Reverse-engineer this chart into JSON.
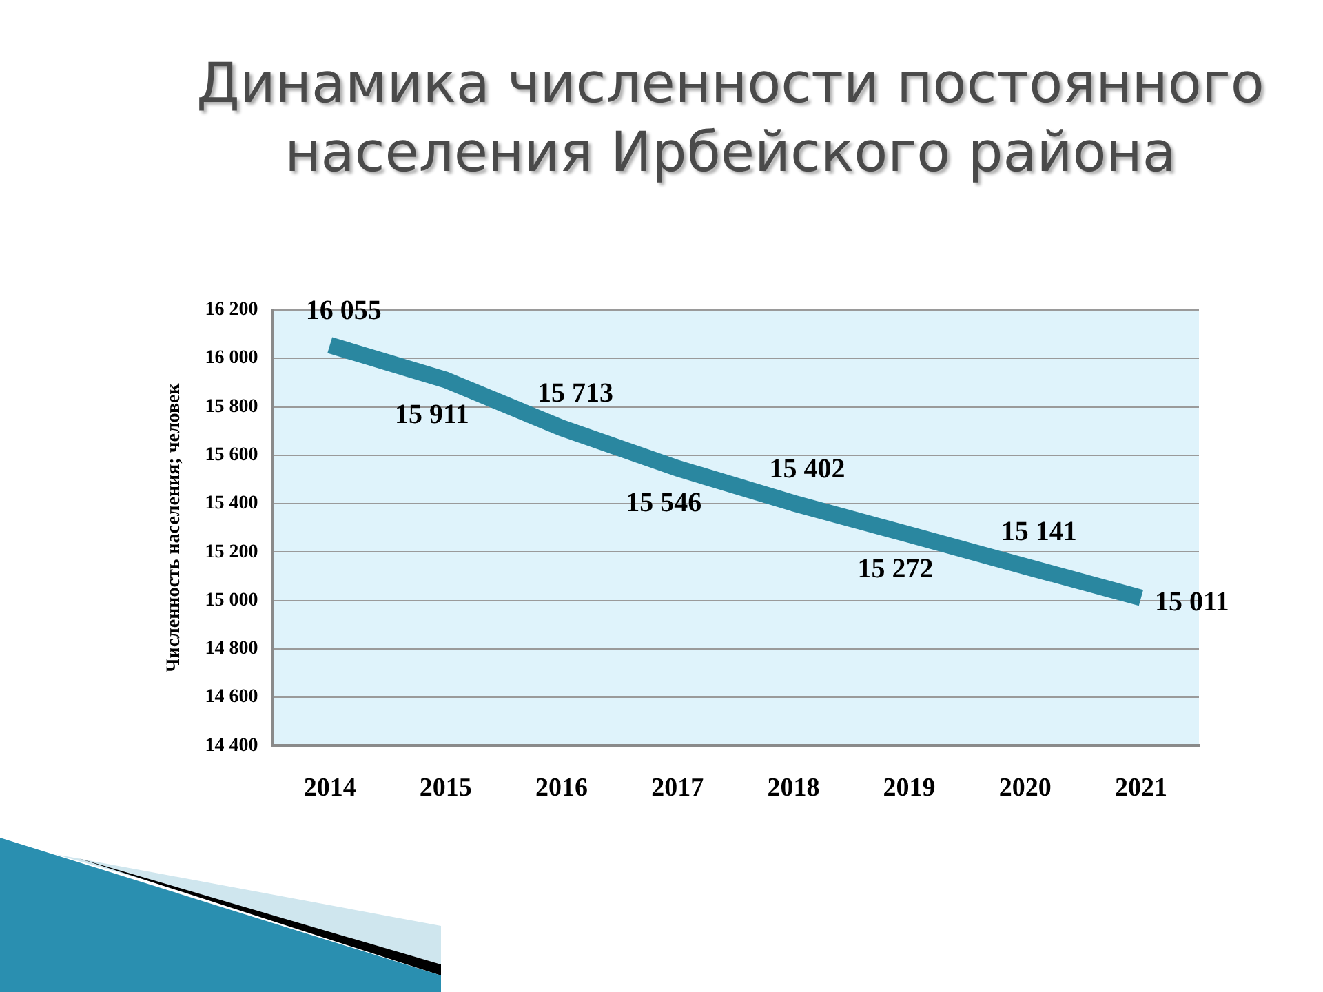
{
  "chart_data": {
    "type": "line",
    "title": "Динамика численности постоянного населения Ирбейского района",
    "ylabel": "Численность населения; человек",
    "categories": [
      "2014",
      "2015",
      "2016",
      "2017",
      "2018",
      "2019",
      "2020",
      "2021"
    ],
    "values": [
      16055,
      15911,
      15713,
      15546,
      15402,
      15272,
      15141,
      15011
    ],
    "value_labels": [
      "16 055",
      "15 911",
      "15 713",
      "15 546",
      "15 402",
      "15 272",
      "15 141",
      "15 011"
    ],
    "color": "#2a87a0",
    "ylim": [
      14400,
      16200
    ],
    "yticks": [
      {
        "value": 14400,
        "label": "14 400"
      },
      {
        "value": 14600,
        "label": "14 600"
      },
      {
        "value": 14800,
        "label": "14 800"
      },
      {
        "value": 15000,
        "label": "15 000"
      },
      {
        "value": 15200,
        "label": "15 200"
      },
      {
        "value": 15400,
        "label": "15 400"
      },
      {
        "value": 15600,
        "label": "15 600"
      },
      {
        "value": 15800,
        "label": "15 800"
      },
      {
        "value": 16000,
        "label": "16 000"
      },
      {
        "value": 16200,
        "label": "16 200"
      }
    ],
    "grid": "y"
  }
}
